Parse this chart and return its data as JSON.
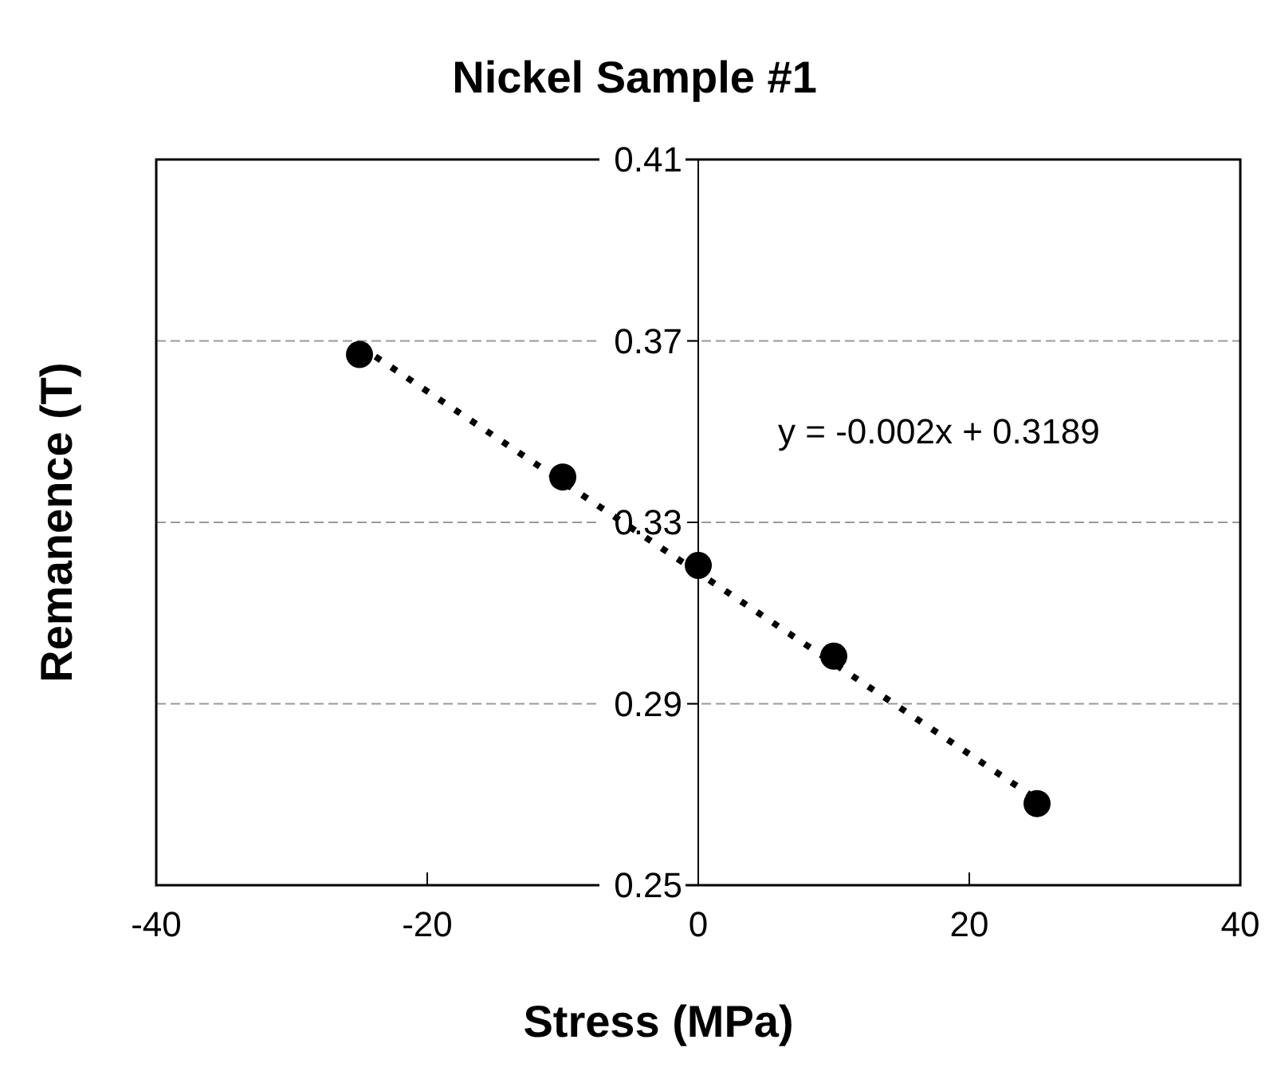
{
  "chart_data": {
    "type": "scatter",
    "title": "Nickel Sample #1",
    "xlabel": "Stress (MPa)",
    "ylabel": "Remanence (T)",
    "xlim": [
      -40,
      40
    ],
    "xticks": [
      -40,
      -20,
      0,
      20,
      40
    ],
    "ylim": [
      0.25,
      0.41
    ],
    "yticks": [
      0.25,
      0.29,
      0.33,
      0.37,
      0.41
    ],
    "grid": "y",
    "marker": "circle",
    "series": [
      {
        "color": "#000000",
        "x": [
          -25,
          -10,
          0,
          10,
          25
        ],
        "values": [
          0.367,
          0.34,
          0.3205,
          0.3005,
          0.268
        ]
      },
      {
        "type": "line",
        "color": "#000000",
        "line_style": "dotted",
        "marker": "none",
        "x": [
          -25,
          25
        ],
        "values": [
          0.3689,
          0.2689
        ]
      }
    ],
    "annotations": [
      "y = -0.002x + 0.3189"
    ]
  }
}
